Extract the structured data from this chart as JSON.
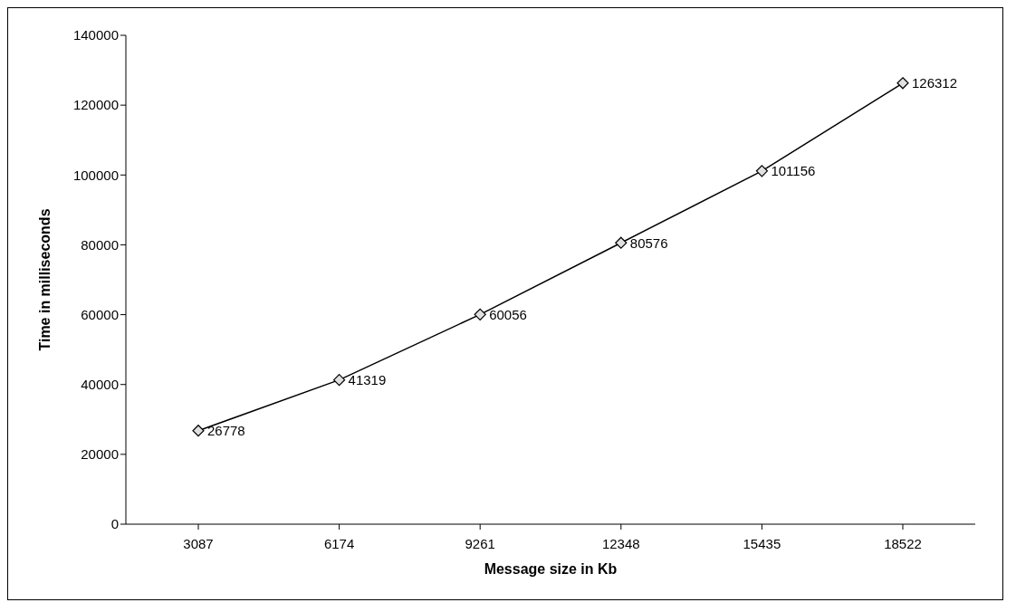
{
  "chart_data": {
    "type": "line",
    "xlabel": "Message size in Kb",
    "ylabel": "Time in milliseconds",
    "categories": [
      "3087",
      "6174",
      "9261",
      "12348",
      "15435",
      "18522"
    ],
    "series": [
      {
        "color": "#000000",
        "values": [
          26778,
          41319,
          60056,
          80576,
          101156,
          126312
        ]
      }
    ],
    "ylim": [
      0,
      140000
    ],
    "yticks": [
      0,
      20000,
      40000,
      60000,
      80000,
      100000,
      120000,
      140000
    ],
    "grid": false,
    "legend": false,
    "marker": "diamond",
    "line_style": "solid",
    "data_labels": true
  }
}
